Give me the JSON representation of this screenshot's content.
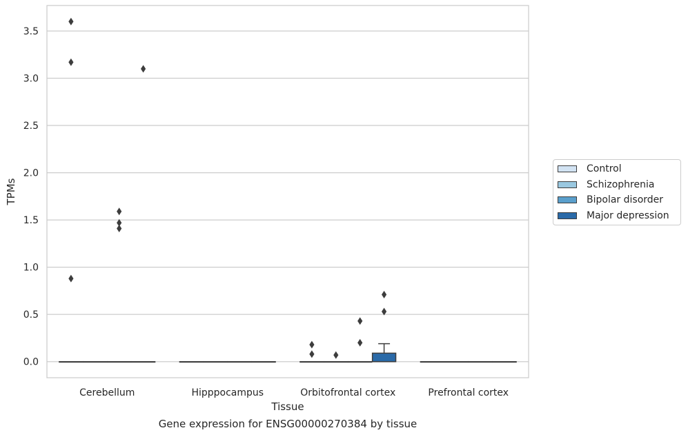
{
  "caption": "Gene expression for ENSG00000270384 by tissue",
  "chart_data": {
    "type": "box",
    "xlabel": "Tissue",
    "ylabel": "TPMs",
    "ylim": [
      -0.17,
      3.77
    ],
    "yticks": [
      "0.0",
      "0.5",
      "1.0",
      "1.5",
      "2.0",
      "2.5",
      "3.0",
      "3.5"
    ],
    "grid": "horizontal",
    "legend_placement": "center-right, outside plot",
    "categories": [
      "Cerebellum",
      "Hipppocampus",
      "Orbitofrontal cortex",
      "Prefrontal cortex"
    ],
    "series": [
      {
        "name": "Control",
        "color": "#d2e3f3",
        "boxes": [
          {
            "q1": 0,
            "median": 0,
            "q3": 0,
            "whisker_low": 0,
            "whisker_high": 0,
            "outliers": [
              0.88,
              3.17,
              3.6
            ]
          },
          {
            "q1": 0,
            "median": 0,
            "q3": 0,
            "whisker_low": 0,
            "whisker_high": 0,
            "outliers": []
          },
          {
            "q1": 0,
            "median": 0,
            "q3": 0,
            "whisker_low": 0,
            "whisker_high": 0,
            "outliers": [
              0.08,
              0.18
            ]
          },
          {
            "q1": 0,
            "median": 0,
            "q3": 0,
            "whisker_low": 0,
            "whisker_high": 0,
            "outliers": []
          }
        ]
      },
      {
        "name": "Schizophrenia",
        "color": "#9ac8e0",
        "boxes": [
          {
            "q1": 0,
            "median": 0,
            "q3": 0,
            "whisker_low": 0,
            "whisker_high": 0,
            "outliers": []
          },
          {
            "q1": 0,
            "median": 0,
            "q3": 0,
            "whisker_low": 0,
            "whisker_high": 0,
            "outliers": []
          },
          {
            "q1": 0,
            "median": 0,
            "q3": 0,
            "whisker_low": 0,
            "whisker_high": 0,
            "outliers": [
              0.07
            ]
          },
          {
            "q1": 0,
            "median": 0,
            "q3": 0,
            "whisker_low": 0,
            "whisker_high": 0,
            "outliers": []
          }
        ]
      },
      {
        "name": "Bipolar disorder",
        "color": "#5a9fcc",
        "boxes": [
          {
            "q1": 0,
            "median": 0,
            "q3": 0,
            "whisker_low": 0,
            "whisker_high": 0,
            "outliers": [
              1.41,
              1.47,
              1.59
            ]
          },
          {
            "q1": 0,
            "median": 0,
            "q3": 0,
            "whisker_low": 0,
            "whisker_high": 0,
            "outliers": []
          },
          {
            "q1": 0,
            "median": 0,
            "q3": 0,
            "whisker_low": 0,
            "whisker_high": 0,
            "outliers": [
              0.2,
              0.43
            ]
          },
          {
            "q1": 0,
            "median": 0,
            "q3": 0,
            "whisker_low": 0,
            "whisker_high": 0,
            "outliers": []
          }
        ]
      },
      {
        "name": "Major depression",
        "color": "#2a6aa8",
        "boxes": [
          {
            "q1": 0,
            "median": 0,
            "q3": 0,
            "whisker_low": 0,
            "whisker_high": 0,
            "outliers": [
              3.1
            ]
          },
          {
            "q1": 0,
            "median": 0,
            "q3": 0,
            "whisker_low": 0,
            "whisker_high": 0,
            "outliers": []
          },
          {
            "q1": 0,
            "median": 0,
            "q3": 0.09,
            "whisker_low": 0,
            "whisker_high": 0.19,
            "outliers": [
              0.53,
              0.71
            ]
          },
          {
            "q1": 0,
            "median": 0,
            "q3": 0,
            "whisker_low": 0,
            "whisker_high": 0,
            "outliers": []
          }
        ]
      }
    ]
  }
}
